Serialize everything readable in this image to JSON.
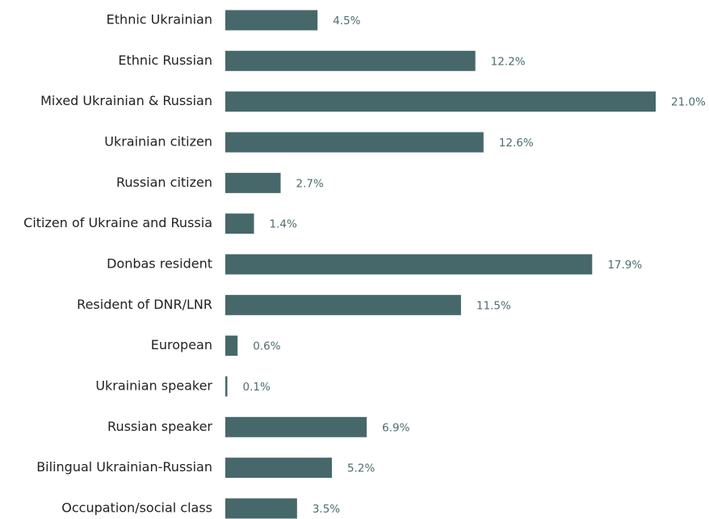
{
  "chart_data": {
    "type": "barh",
    "categories": [
      "Ethnic Ukrainian",
      "Ethnic Russian",
      "Mixed Ukrainian & Russian",
      "Ukrainian citizen",
      "Russian citizen",
      "Citizen of Ukraine and Russia",
      "Donbas resident",
      "Resident of DNR/LNR",
      "European",
      "Ukrainian speaker",
      "Russian speaker",
      "Bilingual Ukrainian-Russian",
      "Occupation/social class"
    ],
    "values": [
      4.5,
      12.2,
      21.0,
      12.6,
      2.7,
      1.4,
      17.9,
      11.5,
      0.6,
      0.1,
      6.9,
      5.2,
      3.5
    ],
    "value_labels": [
      "4.5%",
      "12.2%",
      "21.0%",
      "12.6%",
      "2.7%",
      "1.4%",
      "17.9%",
      "11.5%",
      "0.6%",
      "0.1%",
      "6.9%",
      "5.2%",
      "3.5%"
    ],
    "color": "#46686a"
  }
}
